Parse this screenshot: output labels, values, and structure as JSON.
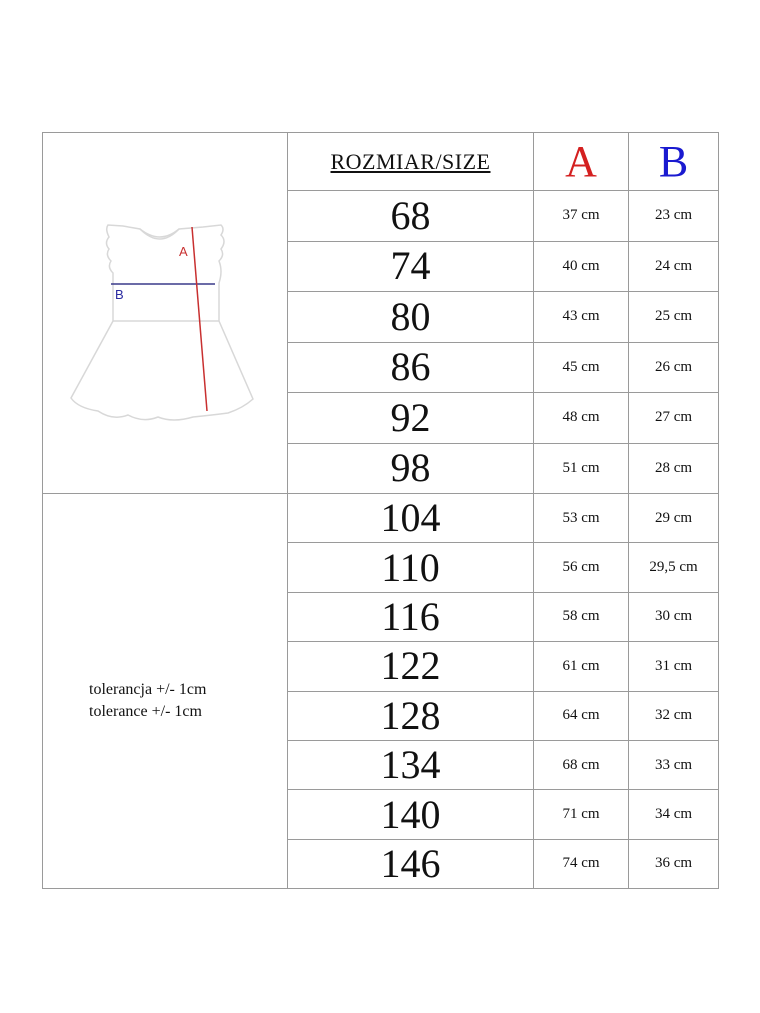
{
  "header": {
    "size_label": "ROZMIAR/SIZE",
    "a_label": "A",
    "b_label": "B"
  },
  "colors": {
    "a": "#d42020",
    "b": "#1a1ad0"
  },
  "illustration": {
    "icon": "dress-diagram",
    "a_marker": "A",
    "b_marker": "B"
  },
  "tolerance": [
    "tolerancja +/- 1cm",
    "tolerance +/- 1cm"
  ],
  "rows": [
    {
      "size": "68",
      "a": "37 cm",
      "b": "23 cm"
    },
    {
      "size": "74",
      "a": "40 cm",
      "b": "24 cm"
    },
    {
      "size": "80",
      "a": "43 cm",
      "b": "25 cm"
    },
    {
      "size": "86",
      "a": "45 cm",
      "b": "26 cm"
    },
    {
      "size": "92",
      "a": "48 cm",
      "b": "27 cm"
    },
    {
      "size": "98",
      "a": "51 cm",
      "b": "28 cm"
    },
    {
      "size": "104",
      "a": "53 cm",
      "b": "29 cm"
    },
    {
      "size": "110",
      "a": "56 cm",
      "b": "29,5 cm"
    },
    {
      "size": "116",
      "a": "58 cm",
      "b": "30 cm"
    },
    {
      "size": "122",
      "a": "61 cm",
      "b": "31 cm"
    },
    {
      "size": "128",
      "a": "64 cm",
      "b": "32 cm"
    },
    {
      "size": "134",
      "a": "68 cm",
      "b": "33 cm"
    },
    {
      "size": "140",
      "a": "71 cm",
      "b": "34 cm"
    },
    {
      "size": "146",
      "a": "74 cm",
      "b": "36 cm"
    }
  ]
}
